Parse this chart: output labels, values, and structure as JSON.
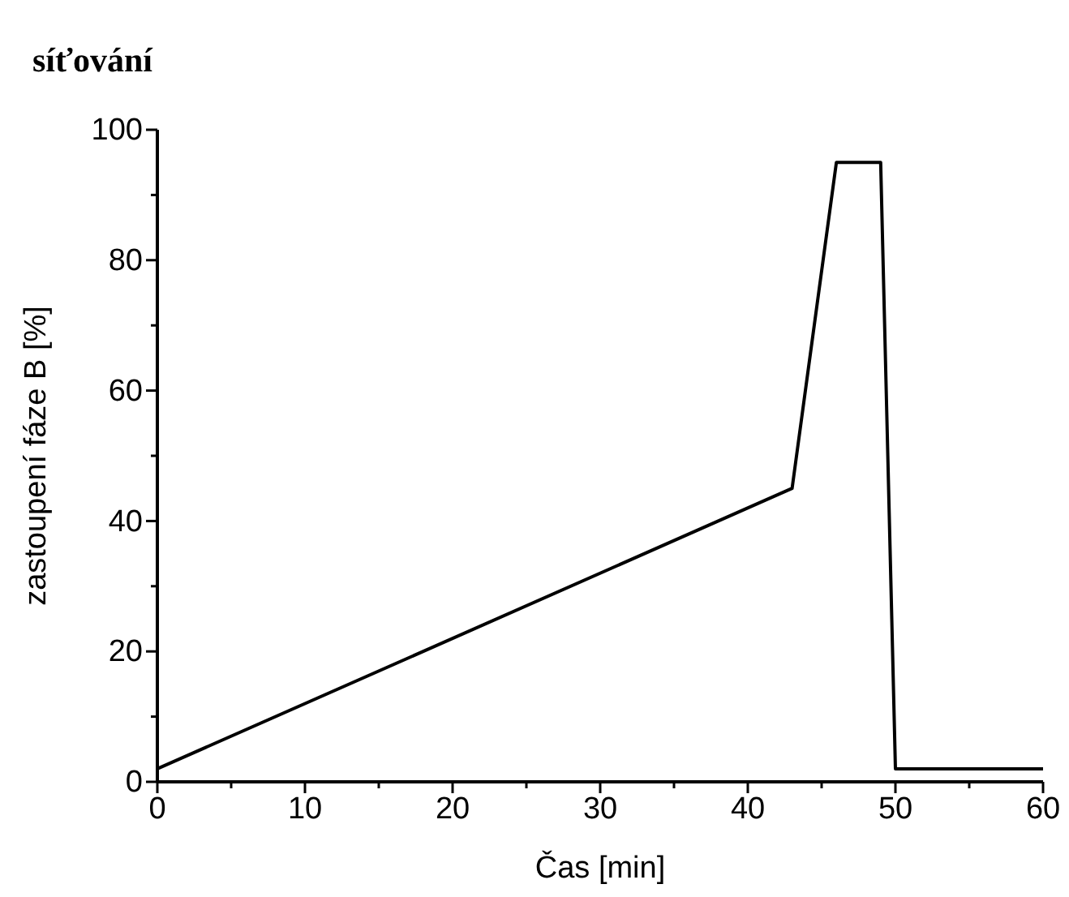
{
  "chart_data": {
    "type": "line",
    "title": "síťování",
    "xlabel": "Čas [min]",
    "ylabel": "zastoupení fáze B [%]",
    "x": [
      0,
      43,
      46,
      49,
      50,
      60
    ],
    "series": [
      {
        "color": "#000000",
        "values": [
          2,
          45,
          95,
          95,
          2,
          2
        ]
      }
    ],
    "xlim": [
      0,
      60
    ],
    "ylim": [
      0,
      100
    ],
    "xticks": [
      0,
      {
        "value": 5,
        "label": null
      },
      10,
      {
        "value": 15,
        "label": null
      },
      20,
      {
        "value": 25,
        "label": null
      },
      30,
      {
        "value": 35,
        "label": null
      },
      40,
      {
        "value": 45,
        "label": null
      },
      50,
      {
        "value": 55,
        "label": null
      },
      60
    ],
    "yticks": [
      0,
      {
        "value": 10,
        "label": null
      },
      20,
      {
        "value": 30,
        "label": null
      },
      40,
      {
        "value": 50,
        "label": null
      },
      60,
      {
        "value": 70,
        "label": null
      },
      80,
      {
        "value": 90,
        "label": null
      },
      100
    ],
    "grid": false,
    "marker": "none",
    "line_style": "solid"
  }
}
